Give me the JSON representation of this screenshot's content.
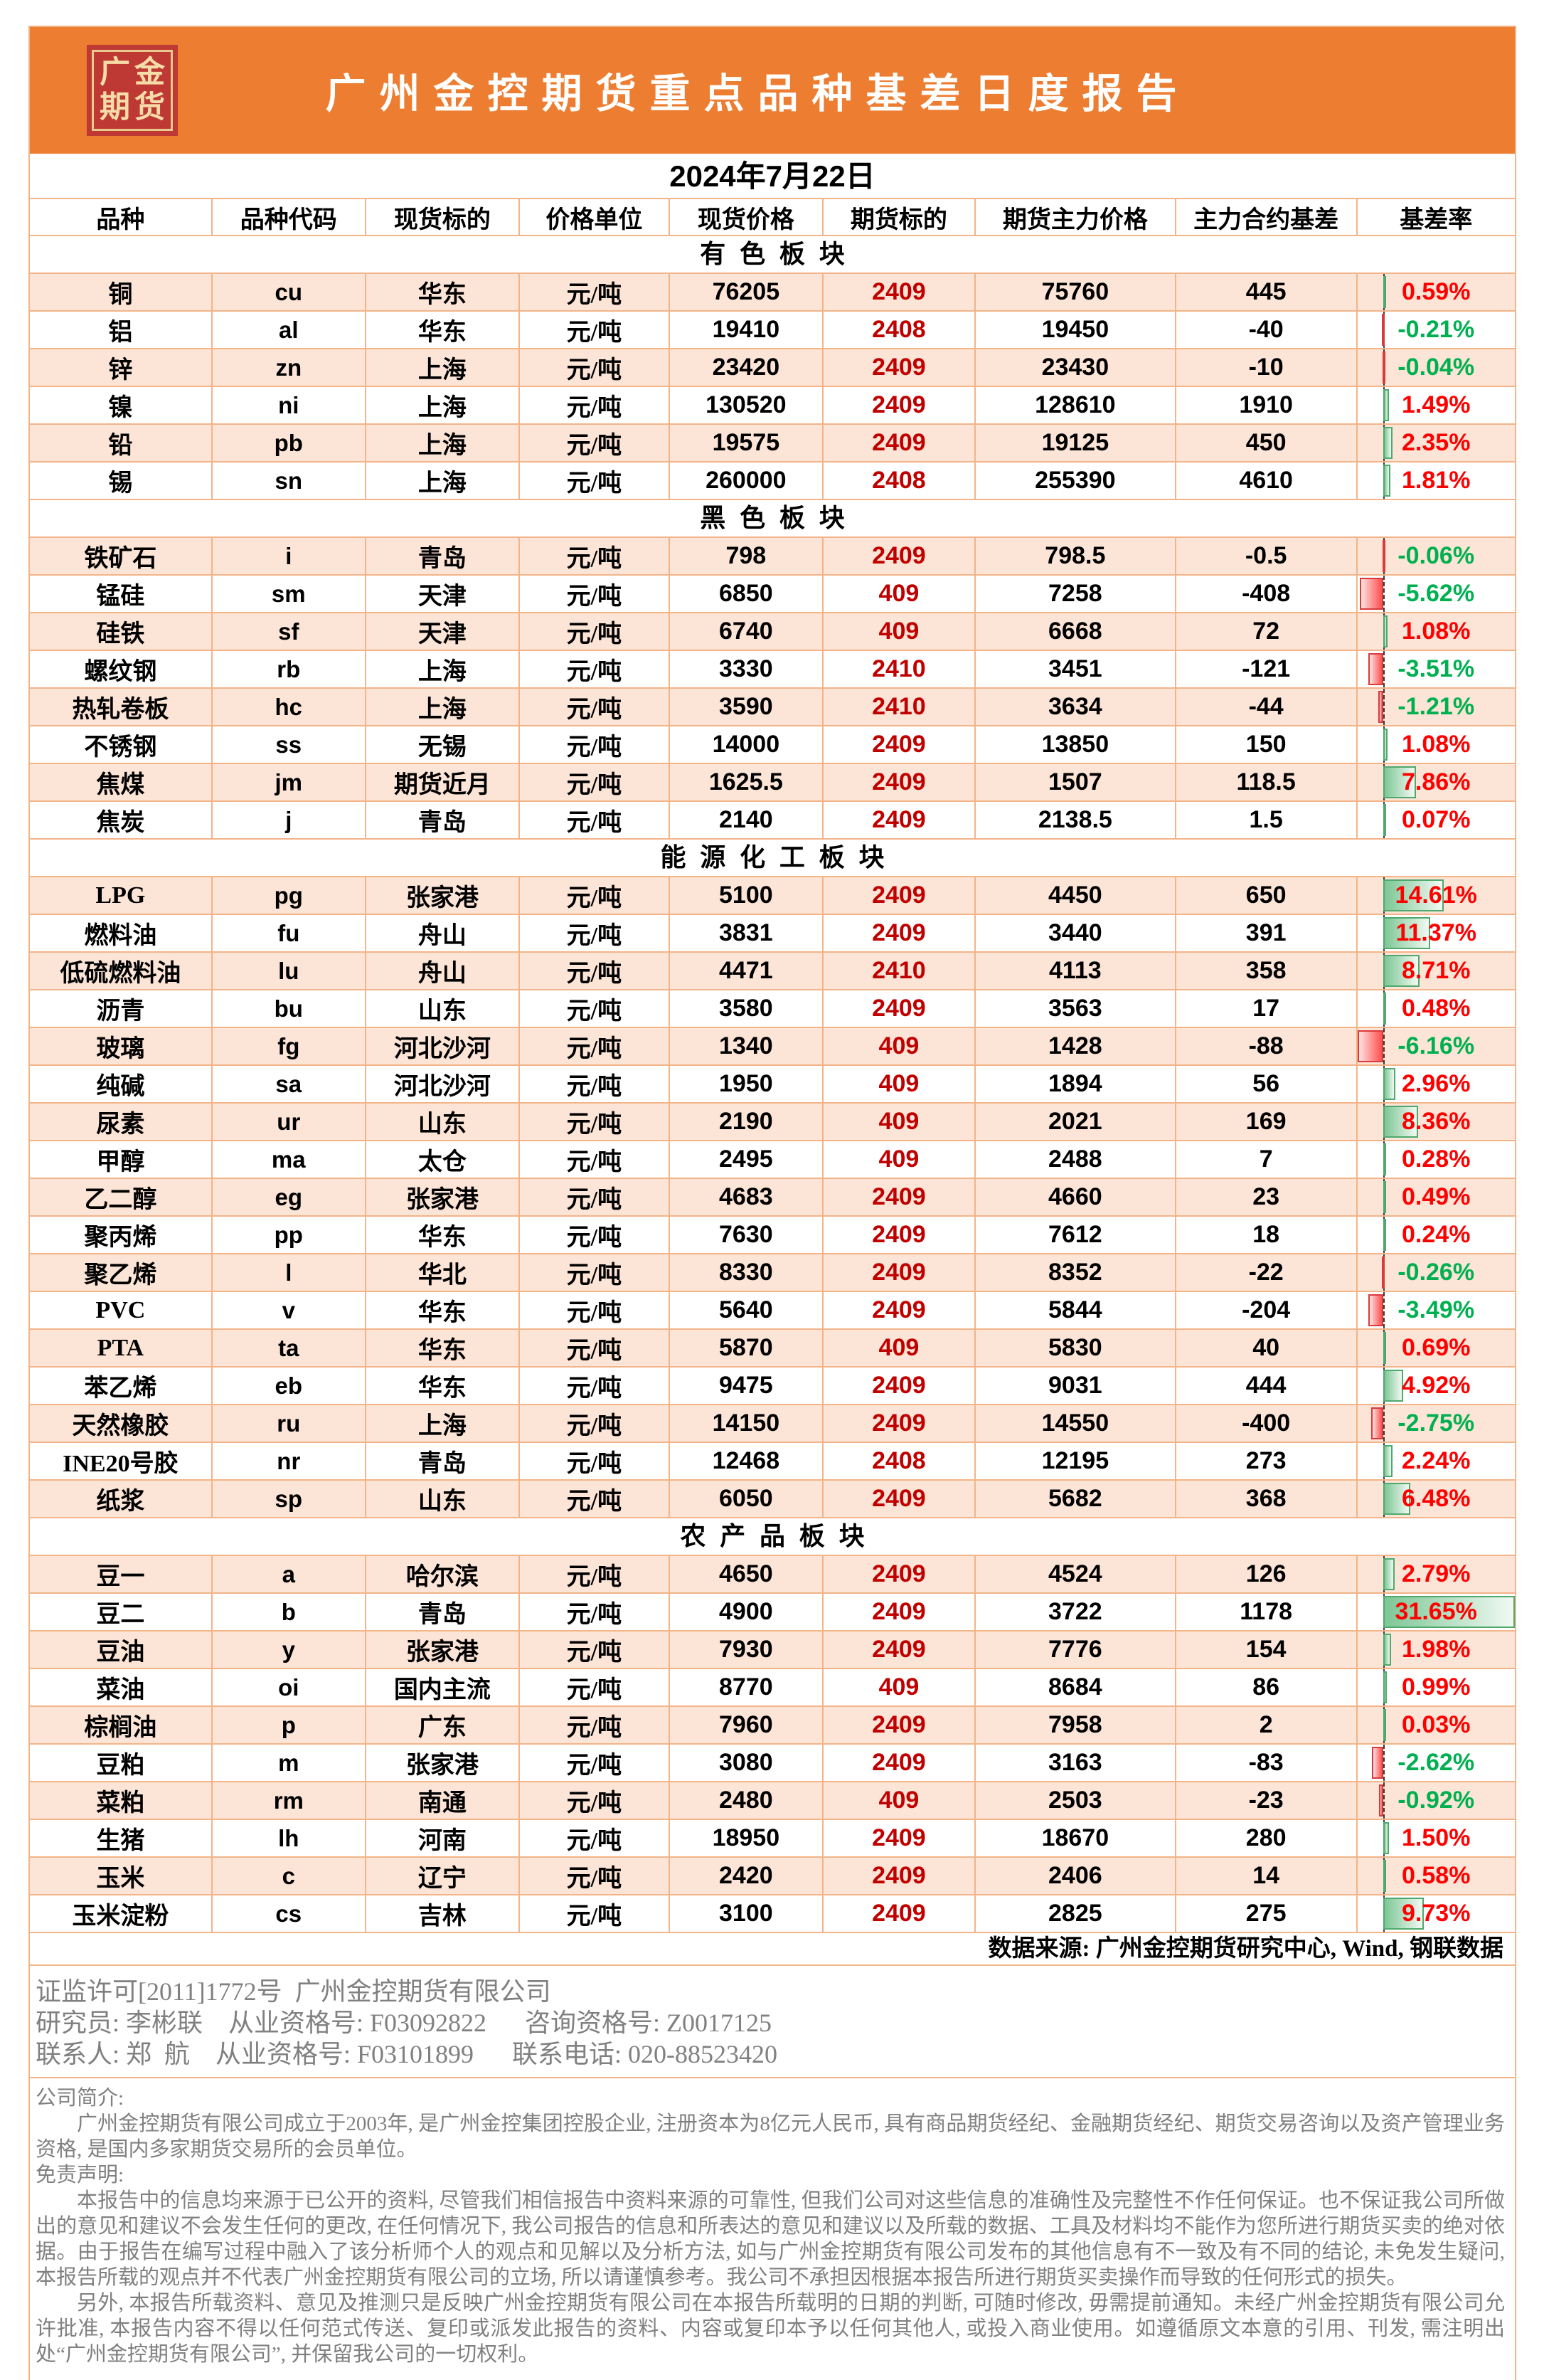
{
  "report": {
    "logo_line1": "广金",
    "logo_line2": "期货",
    "title": "广州金控期货重点品种基差日度报告",
    "date": "2024年7月22日",
    "source_note": "数据来源: 广州金控期货研究中心, Wind, 钢联数据"
  },
  "table": {
    "columns": [
      "品种",
      "品种代码",
      "现货标的",
      "价格单位",
      "现货价格",
      "期货标的",
      "期货主力价格",
      "主力合约基差",
      "基差率"
    ],
    "bar_scale": {
      "min": -6.16,
      "max": 31.65
    },
    "sections": [
      {
        "id": "nonferrous",
        "name": "有色板块",
        "rows": [
          {
            "name": "铜",
            "code": "cu",
            "spot": "华东",
            "unit": "元/吨",
            "spot_price": "76205",
            "contract": "2409",
            "futures_price": "75760",
            "basis": "445",
            "rate": "0.59%",
            "rate_value": 0.59
          },
          {
            "name": "铝",
            "code": "al",
            "spot": "华东",
            "unit": "元/吨",
            "spot_price": "19410",
            "contract": "2408",
            "futures_price": "19450",
            "basis": "-40",
            "rate": "-0.21%",
            "rate_value": -0.21
          },
          {
            "name": "锌",
            "code": "zn",
            "spot": "上海",
            "unit": "元/吨",
            "spot_price": "23420",
            "contract": "2409",
            "futures_price": "23430",
            "basis": "-10",
            "rate": "-0.04%",
            "rate_value": -0.04
          },
          {
            "name": "镍",
            "code": "ni",
            "spot": "上海",
            "unit": "元/吨",
            "spot_price": "130520",
            "contract": "2409",
            "futures_price": "128610",
            "basis": "1910",
            "rate": "1.49%",
            "rate_value": 1.49
          },
          {
            "name": "铅",
            "code": "pb",
            "spot": "上海",
            "unit": "元/吨",
            "spot_price": "19575",
            "contract": "2409",
            "futures_price": "19125",
            "basis": "450",
            "rate": "2.35%",
            "rate_value": 2.35
          },
          {
            "name": "锡",
            "code": "sn",
            "spot": "上海",
            "unit": "元/吨",
            "spot_price": "260000",
            "contract": "2408",
            "futures_price": "255390",
            "basis": "4610",
            "rate": "1.81%",
            "rate_value": 1.81
          }
        ]
      },
      {
        "id": "ferrous",
        "name": "黑色板块",
        "rows": [
          {
            "name": "铁矿石",
            "code": "i",
            "spot": "青岛",
            "unit": "元/吨",
            "spot_price": "798",
            "contract": "2409",
            "futures_price": "798.5",
            "basis": "-0.5",
            "rate": "-0.06%",
            "rate_value": -0.06
          },
          {
            "name": "锰硅",
            "code": "sm",
            "spot": "天津",
            "unit": "元/吨",
            "spot_price": "6850",
            "contract": "409",
            "futures_price": "7258",
            "basis": "-408",
            "rate": "-5.62%",
            "rate_value": -5.62
          },
          {
            "name": "硅铁",
            "code": "sf",
            "spot": "天津",
            "unit": "元/吨",
            "spot_price": "6740",
            "contract": "409",
            "futures_price": "6668",
            "basis": "72",
            "rate": "1.08%",
            "rate_value": 1.08
          },
          {
            "name": "螺纹钢",
            "code": "rb",
            "spot": "上海",
            "unit": "元/吨",
            "spot_price": "3330",
            "contract": "2410",
            "futures_price": "3451",
            "basis": "-121",
            "rate": "-3.51%",
            "rate_value": -3.51
          },
          {
            "name": "热轧卷板",
            "code": "hc",
            "spot": "上海",
            "unit": "元/吨",
            "spot_price": "3590",
            "contract": "2410",
            "futures_price": "3634",
            "basis": "-44",
            "rate": "-1.21%",
            "rate_value": -1.21
          },
          {
            "name": "不锈钢",
            "code": "ss",
            "spot": "无锡",
            "unit": "元/吨",
            "spot_price": "14000",
            "contract": "2409",
            "futures_price": "13850",
            "basis": "150",
            "rate": "1.08%",
            "rate_value": 1.08
          },
          {
            "name": "焦煤",
            "code": "jm",
            "spot": "期货近月",
            "unit": "元/吨",
            "spot_price": "1625.5",
            "contract": "2409",
            "futures_price": "1507",
            "basis": "118.5",
            "rate": "7.86%",
            "rate_value": 7.86
          },
          {
            "name": "焦炭",
            "code": "j",
            "spot": "青岛",
            "unit": "元/吨",
            "spot_price": "2140",
            "contract": "2409",
            "futures_price": "2138.5",
            "basis": "1.5",
            "rate": "0.07%",
            "rate_value": 0.07
          }
        ]
      },
      {
        "id": "energy_chem",
        "name": "能源化工板块",
        "rows": [
          {
            "name": "LPG",
            "code": "pg",
            "spot": "张家港",
            "unit": "元/吨",
            "spot_price": "5100",
            "contract": "2409",
            "futures_price": "4450",
            "basis": "650",
            "rate": "14.61%",
            "rate_value": 14.61
          },
          {
            "name": "燃料油",
            "code": "fu",
            "spot": "舟山",
            "unit": "元/吨",
            "spot_price": "3831",
            "contract": "2409",
            "futures_price": "3440",
            "basis": "391",
            "rate": "11.37%",
            "rate_value": 11.37
          },
          {
            "name": "低硫燃料油",
            "code": "lu",
            "spot": "舟山",
            "unit": "元/吨",
            "spot_price": "4471",
            "contract": "2410",
            "futures_price": "4113",
            "basis": "358",
            "rate": "8.71%",
            "rate_value": 8.71
          },
          {
            "name": "沥青",
            "code": "bu",
            "spot": "山东",
            "unit": "元/吨",
            "spot_price": "3580",
            "contract": "2409",
            "futures_price": "3563",
            "basis": "17",
            "rate": "0.48%",
            "rate_value": 0.48
          },
          {
            "name": "玻璃",
            "code": "fg",
            "spot": "河北沙河",
            "unit": "元/吨",
            "spot_price": "1340",
            "contract": "409",
            "futures_price": "1428",
            "basis": "-88",
            "rate": "-6.16%",
            "rate_value": -6.16
          },
          {
            "name": "纯碱",
            "code": "sa",
            "spot": "河北沙河",
            "unit": "元/吨",
            "spot_price": "1950",
            "contract": "409",
            "futures_price": "1894",
            "basis": "56",
            "rate": "2.96%",
            "rate_value": 2.96
          },
          {
            "name": "尿素",
            "code": "ur",
            "spot": "山东",
            "unit": "元/吨",
            "spot_price": "2190",
            "contract": "409",
            "futures_price": "2021",
            "basis": "169",
            "rate": "8.36%",
            "rate_value": 8.36
          },
          {
            "name": "甲醇",
            "code": "ma",
            "spot": "太仓",
            "unit": "元/吨",
            "spot_price": "2495",
            "contract": "409",
            "futures_price": "2488",
            "basis": "7",
            "rate": "0.28%",
            "rate_value": 0.28
          },
          {
            "name": "乙二醇",
            "code": "eg",
            "spot": "张家港",
            "unit": "元/吨",
            "spot_price": "4683",
            "contract": "2409",
            "futures_price": "4660",
            "basis": "23",
            "rate": "0.49%",
            "rate_value": 0.49
          },
          {
            "name": "聚丙烯",
            "code": "pp",
            "spot": "华东",
            "unit": "元/吨",
            "spot_price": "7630",
            "contract": "2409",
            "futures_price": "7612",
            "basis": "18",
            "rate": "0.24%",
            "rate_value": 0.24
          },
          {
            "name": "聚乙烯",
            "code": "l",
            "spot": "华北",
            "unit": "元/吨",
            "spot_price": "8330",
            "contract": "2409",
            "futures_price": "8352",
            "basis": "-22",
            "rate": "-0.26%",
            "rate_value": -0.26
          },
          {
            "name": "PVC",
            "code": "v",
            "spot": "华东",
            "unit": "元/吨",
            "spot_price": "5640",
            "contract": "2409",
            "futures_price": "5844",
            "basis": "-204",
            "rate": "-3.49%",
            "rate_value": -3.49
          },
          {
            "name": "PTA",
            "code": "ta",
            "spot": "华东",
            "unit": "元/吨",
            "spot_price": "5870",
            "contract": "409",
            "futures_price": "5830",
            "basis": "40",
            "rate": "0.69%",
            "rate_value": 0.69
          },
          {
            "name": "苯乙烯",
            "code": "eb",
            "spot": "华东",
            "unit": "元/吨",
            "spot_price": "9475",
            "contract": "2409",
            "futures_price": "9031",
            "basis": "444",
            "rate": "4.92%",
            "rate_value": 4.92
          },
          {
            "name": "天然橡胶",
            "code": "ru",
            "spot": "上海",
            "unit": "元/吨",
            "spot_price": "14150",
            "contract": "2409",
            "futures_price": "14550",
            "basis": "-400",
            "rate": "-2.75%",
            "rate_value": -2.75
          },
          {
            "name": "INE20号胶",
            "code": "nr",
            "spot": "青岛",
            "unit": "元/吨",
            "spot_price": "12468",
            "contract": "2408",
            "futures_price": "12195",
            "basis": "273",
            "rate": "2.24%",
            "rate_value": 2.24
          },
          {
            "name": "纸浆",
            "code": "sp",
            "spot": "山东",
            "unit": "元/吨",
            "spot_price": "6050",
            "contract": "2409",
            "futures_price": "5682",
            "basis": "368",
            "rate": "6.48%",
            "rate_value": 6.48
          }
        ]
      },
      {
        "id": "agriculture",
        "name": "农产品板块",
        "rows": [
          {
            "name": "豆一",
            "code": "a",
            "spot": "哈尔滨",
            "unit": "元/吨",
            "spot_price": "4650",
            "contract": "2409",
            "futures_price": "4524",
            "basis": "126",
            "rate": "2.79%",
            "rate_value": 2.79
          },
          {
            "name": "豆二",
            "code": "b",
            "spot": "青岛",
            "unit": "元/吨",
            "spot_price": "4900",
            "contract": "2409",
            "futures_price": "3722",
            "basis": "1178",
            "rate": "31.65%",
            "rate_value": 31.65
          },
          {
            "name": "豆油",
            "code": "y",
            "spot": "张家港",
            "unit": "元/吨",
            "spot_price": "7930",
            "contract": "2409",
            "futures_price": "7776",
            "basis": "154",
            "rate": "1.98%",
            "rate_value": 1.98
          },
          {
            "name": "菜油",
            "code": "oi",
            "spot": "国内主流",
            "unit": "元/吨",
            "spot_price": "8770",
            "contract": "409",
            "futures_price": "8684",
            "basis": "86",
            "rate": "0.99%",
            "rate_value": 0.99
          },
          {
            "name": "棕榈油",
            "code": "p",
            "spot": "广东",
            "unit": "元/吨",
            "spot_price": "7960",
            "contract": "2409",
            "futures_price": "7958",
            "basis": "2",
            "rate": "0.03%",
            "rate_value": 0.03
          },
          {
            "name": "豆粕",
            "code": "m",
            "spot": "张家港",
            "unit": "元/吨",
            "spot_price": "3080",
            "contract": "2409",
            "futures_price": "3163",
            "basis": "-83",
            "rate": "-2.62%",
            "rate_value": -2.62
          },
          {
            "name": "菜粕",
            "code": "rm",
            "spot": "南通",
            "unit": "元/吨",
            "spot_price": "2480",
            "contract": "409",
            "futures_price": "2503",
            "basis": "-23",
            "rate": "-0.92%",
            "rate_value": -0.92
          },
          {
            "name": "生猪",
            "code": "lh",
            "spot": "河南",
            "unit": "元/吨",
            "spot_price": "18950",
            "contract": "2409",
            "futures_price": "18670",
            "basis": "280",
            "rate": "1.50%",
            "rate_value": 1.5
          },
          {
            "name": "玉米",
            "code": "c",
            "spot": "辽宁",
            "unit": "元/吨",
            "spot_price": "2420",
            "contract": "2409",
            "futures_price": "2406",
            "basis": "14",
            "rate": "0.58%",
            "rate_value": 0.58
          },
          {
            "name": "玉米淀粉",
            "code": "cs",
            "spot": "吉林",
            "unit": "元/吨",
            "spot_price": "3100",
            "contract": "2409",
            "futures_price": "2825",
            "basis": "275",
            "rate": "9.73%",
            "rate_value": 9.73
          }
        ]
      }
    ]
  },
  "footer": {
    "license_line": "证监许可[2011]1772号  广州金控期货有限公司",
    "researcher_line": "研究员: 李彬联    从业资格号: F03092822      咨询资格号: Z0017125",
    "contact_line": "联系人: 郑  航    从业资格号: F03101899      联系电话: 020-88523420",
    "intro_title": "公司简介:",
    "intro_text": "广州金控期货有限公司成立于2003年, 是广州金控集团控股企业, 注册资本为8亿元人民币, 具有商品期货经纪、金融期货经纪、期货交易咨询以及资产管理业务资格, 是国内多家期货交易所的会员单位。",
    "disclaimer_title": "免责声明:",
    "disclaimer_p1": "本报告中的信息均来源于已公开的资料, 尽管我们相信报告中资料来源的可靠性, 但我们公司对这些信息的准确性及完整性不作任何保证。也不保证我公司所做出的意见和建议不会发生任何的更改, 在任何情况下, 我公司报告的信息和所表达的意见和建议以及所载的数据、工具及材料均不能作为您所进行期货买卖的绝对依据。由于报告在编写过程中融入了该分析师个人的观点和见解以及分析方法, 如与广州金控期货有限公司发布的其他信息有不一致及有不同的结论, 未免发生疑问, 本报告所载的观点并不代表广州金控期货有限公司的立场, 所以请谨慎参考。我公司不承担因根据本报告所进行期货买卖操作而导致的任何形式的损失。",
    "disclaimer_p2": "另外, 本报告所载资料、意见及推测只是反映广州金控期货有限公司在本报告所载明的日期的判断, 可随时修改, 毋需提前通知。未经广州金控期货有限公司允许批准, 本报告内容不得以任何范式传送、复印或派发此报告的资料、内容或复印本予以任何其他人, 或投入商业使用。如遵循原文本意的引用、刊发, 需注明出处“广州金控期货有限公司”, 并保留我公司的一切权利。"
  },
  "colors": {
    "banner_orange": "#ED7D31",
    "logo_red": "#BE3934",
    "logo_gold": "#F5DCA8",
    "row_pink": "#FCE4D6",
    "grid_border": "#F2B488",
    "contract_red": "#C00000",
    "positive_red": "#FF0000",
    "negative_green": "#00B050",
    "footer_gray": "#808080"
  }
}
